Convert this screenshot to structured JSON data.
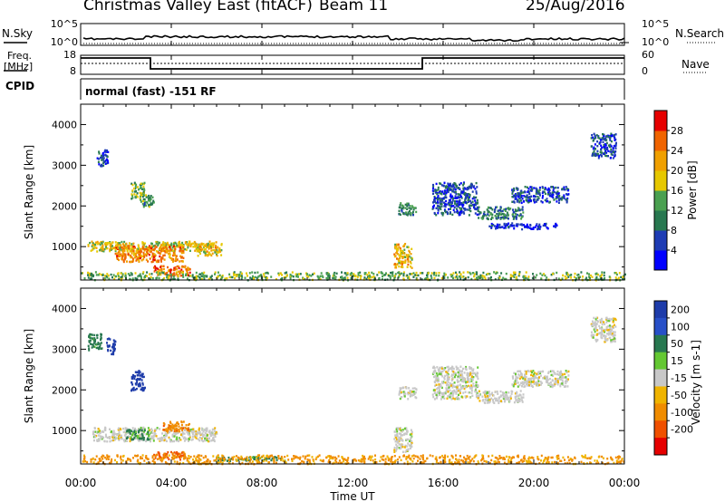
{
  "header": {
    "station": "Christmas Valley East (fitACF)",
    "beam": "Beam 11",
    "date": "25/Aug/2016"
  },
  "noise_panel": {
    "left_label": "N.Sky",
    "right_label": "N.Search",
    "left_ticks": [
      "10^5",
      "10^0"
    ],
    "right_ticks": [
      "10^5",
      "10^0"
    ]
  },
  "freq_panel": {
    "label_line1": "Freq.",
    "label_line2": "[MHz]",
    "left_ticks": [
      "18",
      "8"
    ],
    "right_label": "Nave",
    "right_ticks": [
      "60",
      "0"
    ]
  },
  "cpid": {
    "label": "CPID",
    "value": "normal (fast) -151 RF"
  },
  "colors": {
    "power_scale": [
      "#0000ff",
      "#1e3cb4",
      "#287850",
      "#4aa050",
      "#e6c800",
      "#f0a000",
      "#f06400",
      "#e60000"
    ],
    "velocity_scale": [
      "#1e3caa",
      "#2850c8",
      "#287850",
      "#64c832",
      "#c8c8c8",
      "#f0b400",
      "#f08c00",
      "#f05000",
      "#e60000"
    ]
  },
  "chart_data": [
    {
      "type": "heatmap",
      "name": "power",
      "ylabel": "Slant Range [km]",
      "ylim": [
        180,
        4500
      ],
      "yticks": [
        "1000",
        "2000",
        "3000",
        "4000"
      ],
      "colorbar_label": "Power [dB]",
      "colorbar_ticks": [
        "4",
        "8",
        "12",
        "16",
        "20",
        "24",
        "28"
      ],
      "colorbar_range": [
        0,
        32
      ],
      "regions": [
        {
          "t": [
            0.7,
            1.2
          ],
          "r": [
            3000,
            3400
          ],
          "v": 6
        },
        {
          "t": [
            2.2,
            2.8
          ],
          "r": [
            2200,
            2600
          ],
          "v": 14
        },
        {
          "t": [
            2.6,
            3.2
          ],
          "r": [
            2000,
            2300
          ],
          "v": 12
        },
        {
          "t": [
            0.3,
            6.0
          ],
          "r": [
            900,
            1150
          ],
          "v": 18
        },
        {
          "t": [
            1.5,
            4.5
          ],
          "r": [
            650,
            1050
          ],
          "v": 24
        },
        {
          "t": [
            3.2,
            4.8
          ],
          "r": [
            300,
            550
          ],
          "v": 26
        },
        {
          "t": [
            5.0,
            6.2
          ],
          "r": [
            800,
            1100
          ],
          "v": 20
        },
        {
          "t": [
            0.0,
            24.0
          ],
          "r": [
            200,
            400
          ],
          "v": 14
        },
        {
          "t": [
            13.8,
            14.6
          ],
          "r": [
            500,
            1100
          ],
          "v": 20
        },
        {
          "t": [
            14.0,
            14.8
          ],
          "r": [
            1800,
            2100
          ],
          "v": 10
        },
        {
          "t": [
            15.5,
            17.5
          ],
          "r": [
            1800,
            2600
          ],
          "v": 6
        },
        {
          "t": [
            17.5,
            19.5
          ],
          "r": [
            1700,
            2000
          ],
          "v": 10
        },
        {
          "t": [
            18.0,
            21.0
          ],
          "r": [
            1450,
            1600
          ],
          "v": 4
        },
        {
          "t": [
            19.0,
            21.5
          ],
          "r": [
            2100,
            2500
          ],
          "v": 6
        },
        {
          "t": [
            22.5,
            23.6
          ],
          "r": [
            3200,
            3800
          ],
          "v": 6
        }
      ]
    },
    {
      "type": "heatmap",
      "name": "velocity",
      "xlabel": "Time UT",
      "xticks": [
        "00:00",
        "04:00",
        "08:00",
        "12:00",
        "16:00",
        "20:00",
        "00:00"
      ],
      "xlim": [
        0,
        24
      ],
      "ylabel": "Slant Range [km]",
      "ylim": [
        180,
        4500
      ],
      "yticks": [
        "1000",
        "2000",
        "3000",
        "4000"
      ],
      "colorbar_label": "Velocity [m s-1]",
      "colorbar_ticks": [
        "200",
        "100",
        "50",
        "15",
        "-15",
        "-50",
        "-100",
        "-200"
      ],
      "colorbar_range": [
        250,
        -250
      ],
      "regions": [
        {
          "t": [
            0.3,
            0.9
          ],
          "r": [
            3000,
            3400
          ],
          "v": 50
        },
        {
          "t": [
            1.1,
            1.5
          ],
          "r": [
            2900,
            3300
          ],
          "v": 220
        },
        {
          "t": [
            2.2,
            2.8
          ],
          "r": [
            2000,
            2500
          ],
          "v": 220
        },
        {
          "t": [
            0.5,
            6.0
          ],
          "r": [
            750,
            1100
          ],
          "v": 0
        },
        {
          "t": [
            2.0,
            3.0
          ],
          "r": [
            800,
            1050
          ],
          "v": 40
        },
        {
          "t": [
            3.2,
            4.6
          ],
          "r": [
            300,
            500
          ],
          "v": -80
        },
        {
          "t": [
            3.6,
            4.8
          ],
          "r": [
            1000,
            1250
          ],
          "v": -60
        },
        {
          "t": [
            5.8,
            9.0
          ],
          "r": [
            280,
            380
          ],
          "v": 40
        },
        {
          "t": [
            0.0,
            24.0
          ],
          "r": [
            200,
            420
          ],
          "v": -40
        },
        {
          "t": [
            13.8,
            14.6
          ],
          "r": [
            500,
            1100
          ],
          "v": 0
        },
        {
          "t": [
            14.0,
            14.8
          ],
          "r": [
            1800,
            2100
          ],
          "v": 0
        },
        {
          "t": [
            15.5,
            17.5
          ],
          "r": [
            1800,
            2600
          ],
          "v": 0
        },
        {
          "t": [
            17.5,
            19.5
          ],
          "r": [
            1700,
            2000
          ],
          "v": 0
        },
        {
          "t": [
            19.0,
            21.5
          ],
          "r": [
            2100,
            2500
          ],
          "v": 0
        },
        {
          "t": [
            22.5,
            23.6
          ],
          "r": [
            3200,
            3800
          ],
          "v": 0
        }
      ]
    }
  ]
}
